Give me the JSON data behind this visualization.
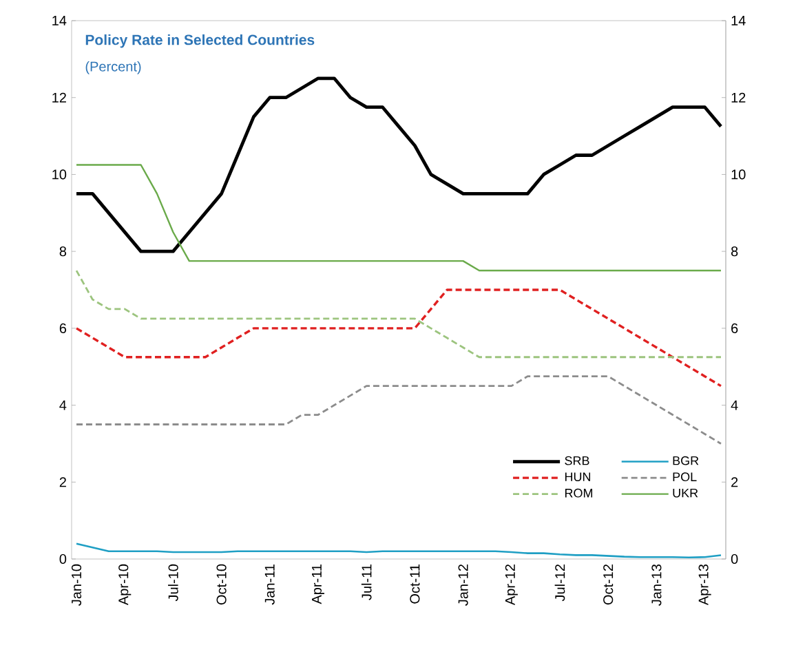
{
  "chart_data": {
    "type": "line",
    "title": "Policy Rate in Selected Countries",
    "subtitle": "(Percent)",
    "categories": [
      "Jan-10",
      null,
      null,
      "Apr-10",
      null,
      null,
      "Jul-10",
      null,
      null,
      "Oct-10",
      null,
      null,
      "Jan-11",
      null,
      null,
      "Apr-11",
      null,
      null,
      "Jul-11",
      null,
      null,
      "Oct-11",
      null,
      null,
      "Jan-12",
      null,
      null,
      "Apr-12",
      null,
      null,
      "Jul-12",
      null,
      null,
      "Oct-12",
      null,
      null,
      "Jan-13",
      null,
      null,
      "Apr-13",
      null
    ],
    "series": [
      {
        "name": "SRB",
        "color": "#000000",
        "line_style": "solid",
        "values": [
          9.5,
          9.5,
          9,
          8.5,
          8,
          8,
          8,
          8.5,
          9,
          9.5,
          10.5,
          11.5,
          12,
          12,
          12.25,
          12.5,
          12.5,
          12,
          11.75,
          11.75,
          11.25,
          10.75,
          10,
          9.75,
          9.5,
          9.5,
          9.5,
          9.5,
          9.5,
          10,
          10.25,
          10.5,
          10.5,
          10.75,
          11,
          11.25,
          11.5,
          11.75,
          11.75,
          11.75,
          11.25
        ]
      },
      {
        "name": "BGR",
        "color": "#1f9fc4",
        "line_style": "solid",
        "values": [
          0.4,
          0.3,
          0.2,
          0.2,
          0.2,
          0.2,
          0.18,
          0.18,
          0.18,
          0.18,
          0.2,
          0.2,
          0.2,
          0.2,
          0.2,
          0.2,
          0.2,
          0.2,
          0.18,
          0.2,
          0.2,
          0.2,
          0.2,
          0.2,
          0.2,
          0.2,
          0.2,
          0.18,
          0.15,
          0.15,
          0.12,
          0.1,
          0.1,
          0.08,
          0.06,
          0.05,
          0.05,
          0.05,
          0.04,
          0.05,
          0.1
        ]
      },
      {
        "name": "HUN",
        "color": "#e02020",
        "line_style": "dashed",
        "values": [
          6,
          5.75,
          5.5,
          5.25,
          5.25,
          5.25,
          5.25,
          5.25,
          5.25,
          5.5,
          5.75,
          6,
          6,
          6,
          6,
          6,
          6,
          6,
          6,
          6,
          6,
          6,
          6.5,
          7,
          7,
          7,
          7,
          7,
          7,
          7,
          7,
          6.75,
          6.5,
          6.25,
          6,
          5.75,
          5.5,
          5.25,
          5,
          4.75,
          4.5
        ]
      },
      {
        "name": "POL",
        "color": "#8c8c8c",
        "line_style": "dashed",
        "values": [
          3.5,
          3.5,
          3.5,
          3.5,
          3.5,
          3.5,
          3.5,
          3.5,
          3.5,
          3.5,
          3.5,
          3.5,
          3.5,
          3.5,
          3.75,
          3.75,
          4,
          4.25,
          4.5,
          4.5,
          4.5,
          4.5,
          4.5,
          4.5,
          4.5,
          4.5,
          4.5,
          4.5,
          4.75,
          4.75,
          4.75,
          4.75,
          4.75,
          4.75,
          4.5,
          4.25,
          4,
          3.75,
          3.5,
          3.25,
          3
        ]
      },
      {
        "name": "ROM",
        "color": "#9cc47e",
        "line_style": "dashed",
        "values": [
          7.5,
          6.75,
          6.5,
          6.5,
          6.25,
          6.25,
          6.25,
          6.25,
          6.25,
          6.25,
          6.25,
          6.25,
          6.25,
          6.25,
          6.25,
          6.25,
          6.25,
          6.25,
          6.25,
          6.25,
          6.25,
          6.25,
          6,
          5.75,
          5.5,
          5.25,
          5.25,
          5.25,
          5.25,
          5.25,
          5.25,
          5.25,
          5.25,
          5.25,
          5.25,
          5.25,
          5.25,
          5.25,
          5.25,
          5.25,
          5.25
        ]
      },
      {
        "name": "UKR",
        "color": "#6aaa4a",
        "line_style": "solid",
        "values": [
          10.25,
          10.25,
          10.25,
          10.25,
          10.25,
          9.5,
          8.5,
          7.75,
          7.75,
          7.75,
          7.75,
          7.75,
          7.75,
          7.75,
          7.75,
          7.75,
          7.75,
          7.75,
          7.75,
          7.75,
          7.75,
          7.75,
          7.75,
          7.75,
          7.75,
          7.5,
          7.5,
          7.5,
          7.5,
          7.5,
          7.5,
          7.5,
          7.5,
          7.5,
          7.5,
          7.5,
          7.5,
          7.5,
          7.5,
          7.5,
          7.5
        ]
      }
    ],
    "ylim": [
      0,
      14
    ],
    "yticks": [
      0,
      2,
      4,
      6,
      8,
      10,
      12,
      14
    ],
    "y2lim": [
      0,
      14
    ],
    "y2ticks": [
      0,
      2,
      4,
      6,
      8,
      10,
      12,
      14
    ],
    "legend": "bottom right",
    "grid": false,
    "marker": "none"
  }
}
